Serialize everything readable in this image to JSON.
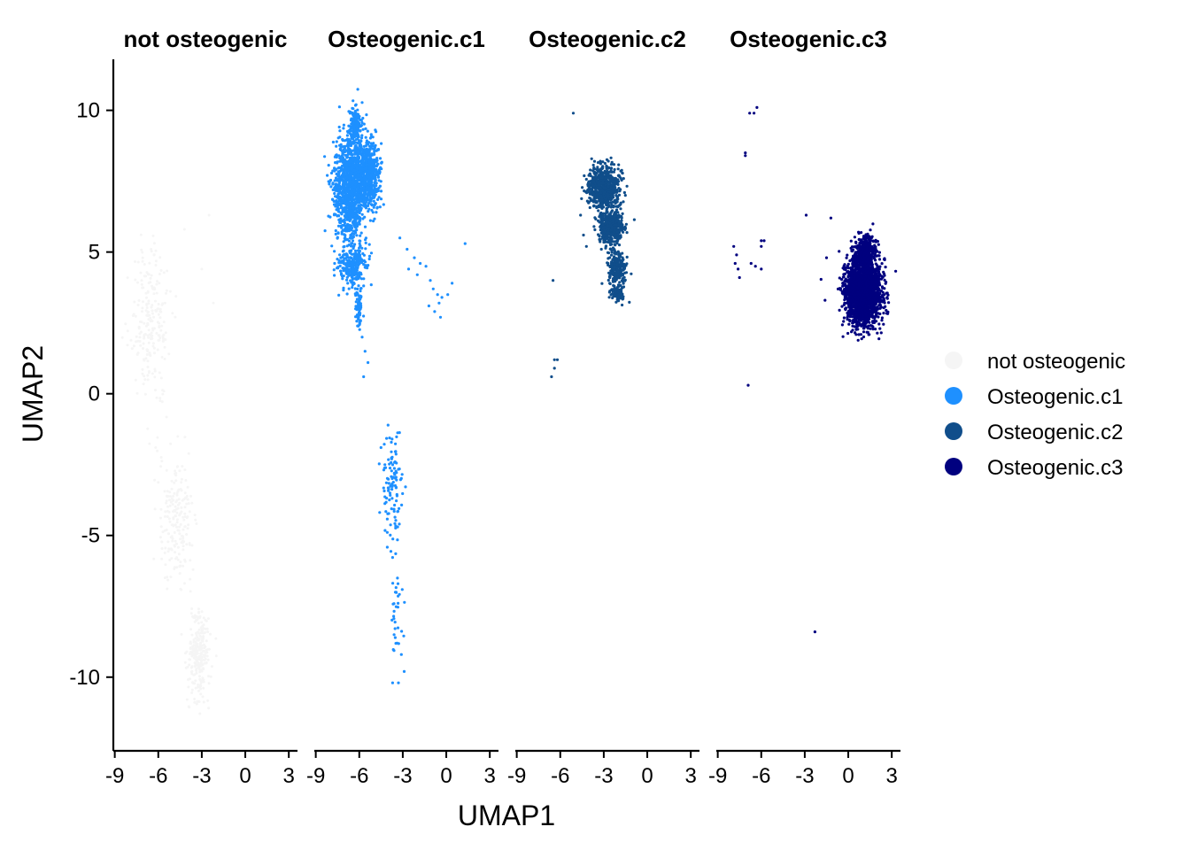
{
  "chart_data": {
    "type": "scatter",
    "xlabel": "UMAP1",
    "ylabel": "UMAP2",
    "xlim": [
      -9.1,
      3.6
    ],
    "ylim": [
      -12.6,
      11.8
    ],
    "x_ticks": [
      -9,
      -6,
      -3,
      0,
      3
    ],
    "x_tick_labels": [
      "-9",
      "-6",
      "-3",
      "0",
      "3"
    ],
    "y_ticks": [
      10,
      5,
      0,
      -5,
      -10
    ],
    "y_tick_labels": [
      "10",
      "5",
      "0",
      "-5",
      "-10"
    ],
    "facets": [
      "not osteogenic",
      "Osteogenic.c1",
      "Osteogenic.c2",
      "Osteogenic.c3"
    ],
    "legend": {
      "position": "right",
      "entries": [
        {
          "label": "not osteogenic",
          "color": "#f5f5f5"
        },
        {
          "label": "Osteogenic.c1",
          "color": "#1e90ff"
        },
        {
          "label": "Osteogenic.c2",
          "color": "#104e8b"
        },
        {
          "label": "Osteogenic.c3",
          "color": "#00007f"
        }
      ]
    },
    "series": [
      {
        "name": "not osteogenic",
        "color": "#f5f5f5",
        "point_size": 1.5,
        "clusters": [
          {
            "center": [
              -6.5,
              2.5
            ],
            "spread": [
              1.2,
              2.2
            ],
            "n": 220
          },
          {
            "center": [
              -4.8,
              -4.5
            ],
            "spread": [
              1.0,
              2.0
            ],
            "n": 200
          },
          {
            "center": [
              -3.2,
              -9.2
            ],
            "spread": [
              0.6,
              1.3
            ],
            "n": 260
          }
        ],
        "points": [
          [
            -6.3,
            4.9
          ],
          [
            -4.2,
            5.8
          ],
          [
            -2.5,
            6.3
          ],
          [
            -2.2,
            3.2
          ],
          [
            -6.5,
            5.1
          ],
          [
            -3.0,
            4.4
          ]
        ]
      },
      {
        "name": "Osteogenic.c1",
        "color": "#1e90ff",
        "point_size": 1.6,
        "clusters": [
          {
            "center": [
              -6.6,
              7.3
            ],
            "spread": [
              0.95,
              1.5
            ],
            "n": 1200
          },
          {
            "center": [
              -5.3,
              7.8
            ],
            "spread": [
              0.6,
              0.9
            ],
            "n": 500
          },
          {
            "center": [
              -6.3,
              9.5
            ],
            "spread": [
              0.3,
              0.5
            ],
            "n": 150
          },
          {
            "center": [
              -6.5,
              4.5
            ],
            "spread": [
              0.8,
              0.6
            ],
            "n": 250
          },
          {
            "center": [
              -6.0,
              3.0
            ],
            "spread": [
              0.2,
              0.6
            ],
            "n": 80
          },
          {
            "center": [
              -3.7,
              -3.3
            ],
            "spread": [
              0.6,
              1.7
            ],
            "n": 110
          },
          {
            "center": [
              -3.4,
              -7.8
            ],
            "spread": [
              0.35,
              1.2
            ],
            "n": 30
          }
        ],
        "points": [
          [
            -3.2,
            5.5
          ],
          [
            -2.7,
            5.1
          ],
          [
            -2.2,
            4.8
          ],
          [
            -1.8,
            4.6
          ],
          [
            -1.4,
            4.5
          ],
          [
            -1.1,
            4.0
          ],
          [
            -0.9,
            3.7
          ],
          [
            -0.6,
            3.5
          ],
          [
            -0.5,
            3.2
          ],
          [
            -0.3,
            3.4
          ],
          [
            0.1,
            3.5
          ],
          [
            0.4,
            3.9
          ],
          [
            -1.2,
            3.1
          ],
          [
            -0.8,
            2.9
          ],
          [
            -0.4,
            2.7
          ],
          [
            1.3,
            5.3
          ],
          [
            -2.6,
            4.4
          ],
          [
            -2.0,
            4.2
          ],
          [
            -5.8,
            2.0
          ],
          [
            -5.6,
            1.5
          ],
          [
            -5.4,
            1.1
          ],
          [
            -5.7,
            0.6
          ],
          [
            -4.5,
            -1.9
          ],
          [
            -3.7,
            -10.2
          ],
          [
            -3.3,
            -10.2
          ],
          [
            -2.9,
            -9.8
          ],
          [
            -3.1,
            -9.2
          ],
          [
            -3.4,
            -8.8
          ],
          [
            -3.6,
            -8.5
          ]
        ]
      },
      {
        "name": "Osteogenic.c2",
        "color": "#104e8b",
        "point_size": 1.6,
        "clusters": [
          {
            "center": [
              -3.0,
              7.3
            ],
            "spread": [
              0.85,
              0.6
            ],
            "n": 700
          },
          {
            "center": [
              -2.5,
              5.9
            ],
            "spread": [
              0.7,
              0.5
            ],
            "n": 500
          },
          {
            "center": [
              -2.1,
              4.4
            ],
            "spread": [
              0.5,
              0.5
            ],
            "n": 250
          },
          {
            "center": [
              -2.0,
              3.5
            ],
            "spread": [
              0.4,
              0.2
            ],
            "n": 80
          }
        ],
        "points": [
          [
            -5.1,
            9.9
          ],
          [
            -6.4,
            1.2
          ],
          [
            -6.2,
            1.2
          ],
          [
            -6.4,
            0.9
          ],
          [
            -6.6,
            0.6
          ],
          [
            -6.5,
            4.0
          ],
          [
            -4.2,
            5.2
          ],
          [
            -4.4,
            5.6
          ],
          [
            -4.6,
            6.3
          ]
        ]
      },
      {
        "name": "Osteogenic.c3",
        "color": "#00007f",
        "point_size": 1.6,
        "clusters": [
          {
            "center": [
              1.0,
              3.6
            ],
            "spread": [
              1.0,
              0.95
            ],
            "n": 2200
          },
          {
            "center": [
              1.2,
              5.0
            ],
            "spread": [
              0.6,
              0.5
            ],
            "n": 300
          }
        ],
        "points": [
          [
            -6.5,
            9.9
          ],
          [
            -6.3,
            10.1
          ],
          [
            -6.8,
            9.9
          ],
          [
            -7.1,
            8.5
          ],
          [
            -7.1,
            8.4
          ],
          [
            -6.0,
            5.4
          ],
          [
            -5.8,
            5.4
          ],
          [
            -6.0,
            5.2
          ],
          [
            -7.9,
            5.2
          ],
          [
            -7.7,
            4.9
          ],
          [
            -7.8,
            4.6
          ],
          [
            -7.6,
            4.4
          ],
          [
            -6.7,
            4.6
          ],
          [
            -6.4,
            4.5
          ],
          [
            -6.0,
            4.4
          ],
          [
            -7.5,
            4.1
          ],
          [
            -2.9,
            6.3
          ],
          [
            -1.2,
            6.2
          ],
          [
            -1.5,
            4.8
          ],
          [
            -1.6,
            3.3
          ],
          [
            -6.9,
            0.3
          ],
          [
            -2.3,
            -8.4
          ]
        ]
      }
    ]
  }
}
